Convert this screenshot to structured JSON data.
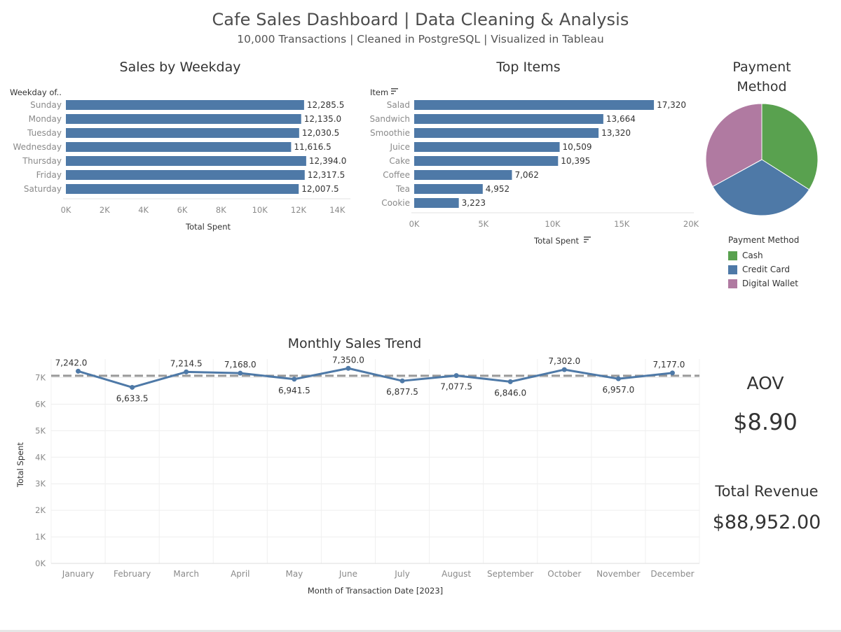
{
  "dashboard": {
    "title": "Cafe Sales Dashboard | Data Cleaning & Analysis",
    "subtitle": "10,000 Transactions | Cleaned in PostgreSQL | Visualized in Tableau"
  },
  "kpis": {
    "aov_label": "AOV",
    "aov_value": "$8.90",
    "revenue_label": "Total Revenue",
    "revenue_value": "$88,952.00"
  },
  "chart_data": [
    {
      "id": "weekday",
      "type": "bar",
      "orientation": "horizontal",
      "title": "Sales by Weekday",
      "dimension_label": "Weekday of..",
      "xlabel": "Total Spent",
      "categories": [
        "Sunday",
        "Monday",
        "Tuesday",
        "Wednesday",
        "Thursday",
        "Friday",
        "Saturday"
      ],
      "values": [
        12285.5,
        12135.0,
        12030.5,
        11616.5,
        12394.0,
        12317.5,
        12007.5
      ],
      "value_labels": [
        "12,285.5",
        "12,135.0",
        "12,030.5",
        "11,616.5",
        "12,394.0",
        "12,317.5",
        "12,007.5"
      ],
      "xlim": [
        0,
        15000
      ],
      "xticks": [
        0,
        2000,
        4000,
        6000,
        8000,
        10000,
        12000,
        14000
      ],
      "xtick_labels": [
        "0K",
        "2K",
        "4K",
        "6K",
        "8K",
        "10K",
        "12K",
        "14K"
      ],
      "color": "#4e79a7"
    },
    {
      "id": "items",
      "type": "bar",
      "orientation": "horizontal",
      "title": "Top Items",
      "dimension_label": "Item",
      "xlabel": "Total Spent",
      "categories": [
        "Salad",
        "Sandwich",
        "Smoothie",
        "Juice",
        "Cake",
        "Coffee",
        "Tea",
        "Cookie"
      ],
      "values": [
        17320,
        13664,
        13320,
        10509,
        10395,
        7062,
        4952,
        3223
      ],
      "value_labels": [
        "17,320",
        "13,664",
        "13,320",
        "10,509",
        "10,395",
        "7,062",
        "4,952",
        "3,223"
      ],
      "xlim": [
        0,
        20000
      ],
      "xticks": [
        0,
        5000,
        10000,
        15000,
        20000
      ],
      "xtick_labels": [
        "0K",
        "5K",
        "10K",
        "15K",
        "20K"
      ],
      "color": "#4e79a7"
    },
    {
      "id": "payment",
      "type": "pie",
      "title": "Payment Method",
      "legend_title": "Payment Method",
      "legend_position": "bottom",
      "categories": [
        "Cash",
        "Credit Card",
        "Digital Wallet"
      ],
      "values": [
        0.34,
        0.33,
        0.33
      ],
      "colors": [
        "#59a14f",
        "#4e79a7",
        "#b07aa1"
      ]
    },
    {
      "id": "monthly",
      "type": "line",
      "title": "Monthly Sales Trend",
      "xlabel": "Month of Transaction Date [2023]",
      "ylabel": "Total Spent",
      "categories": [
        "January",
        "February",
        "March",
        "April",
        "May",
        "June",
        "July",
        "August",
        "September",
        "October",
        "November",
        "December"
      ],
      "values": [
        7242.0,
        6633.5,
        7214.5,
        7168.0,
        6941.5,
        7350.0,
        6877.5,
        7077.5,
        6846.0,
        7302.0,
        6957.0,
        7177.0
      ],
      "value_labels": [
        "7,242.0",
        "6,633.5",
        "7,214.5",
        "7,168.0",
        "6,941.5",
        "7,350.0",
        "6,877.5",
        "7,077.5",
        "6,846.0",
        "7,302.0",
        "6,957.0",
        "7,177.0"
      ],
      "ylim": [
        0,
        7700
      ],
      "yticks": [
        0,
        1000,
        2000,
        3000,
        4000,
        5000,
        6000,
        7000
      ],
      "ytick_labels": [
        "0K",
        "1K",
        "2K",
        "3K",
        "4K",
        "5K",
        "6K",
        "7K"
      ],
      "reference_line": 7070,
      "grid": true,
      "color": "#4e79a7"
    }
  ]
}
